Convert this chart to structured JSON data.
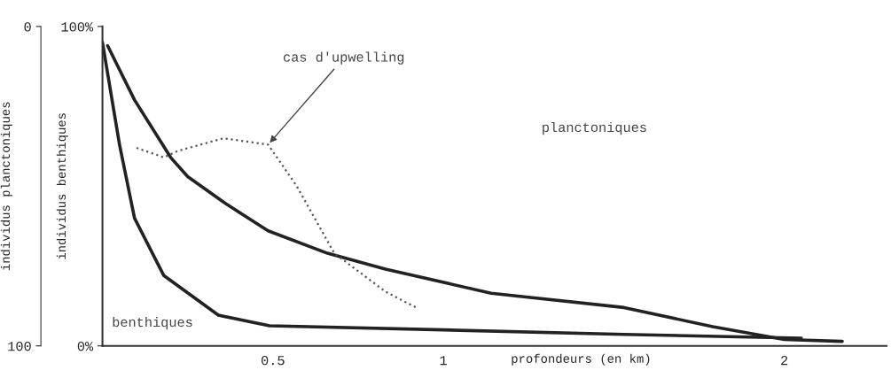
{
  "chart_data": {
    "type": "line",
    "xlabel": "profondeurs (en km)",
    "ylabel": "individus benthiques",
    "y2label": "individus planctoniques",
    "xlim": [
      0,
      2.3
    ],
    "xticks": [
      0.5,
      1,
      2
    ],
    "ylim": [
      0,
      100
    ],
    "yticks": [
      {
        "value": 0,
        "label": "0%"
      },
      {
        "value": 100,
        "label": "100%"
      }
    ],
    "y2lim": [
      100,
      0
    ],
    "y2ticks": [
      0,
      100
    ],
    "grid": false,
    "legend": false,
    "series": [
      {
        "color": "#222222",
        "line_style": "solid",
        "x": [
          0.015,
          0.094,
          0.2,
          0.25,
          0.355,
          0.486,
          0.66,
          0.83,
          1.14,
          1.53,
          1.79,
          2.0,
          2.17
        ],
        "values": [
          94,
          77,
          59,
          53,
          45,
          36,
          29,
          24,
          16.5,
          12,
          6,
          2,
          1.4
        ]
      },
      {
        "color": "#222222",
        "line_style": "solid",
        "x": [
          0,
          0.05,
          0.094,
          0.18,
          0.34,
          0.49,
          1.0,
          1.53,
          2.05
        ],
        "values": [
          95,
          63,
          40,
          22,
          9.6,
          6.3,
          5,
          3.6,
          2.4
        ]
      },
      {
        "color": "#555555",
        "line_style": "dotted",
        "x": [
          0.1,
          0.18,
          0.22,
          0.355,
          0.486,
          0.57,
          0.68,
          0.83,
          0.92
        ],
        "values": [
          62,
          59,
          61,
          65,
          63,
          50,
          29,
          17,
          12
        ]
      }
    ],
    "annotations": [
      {
        "text": "cas d'upwelling",
        "x": 0.486,
        "y": 63
      },
      "planctoniques",
      "benthiques"
    ]
  }
}
